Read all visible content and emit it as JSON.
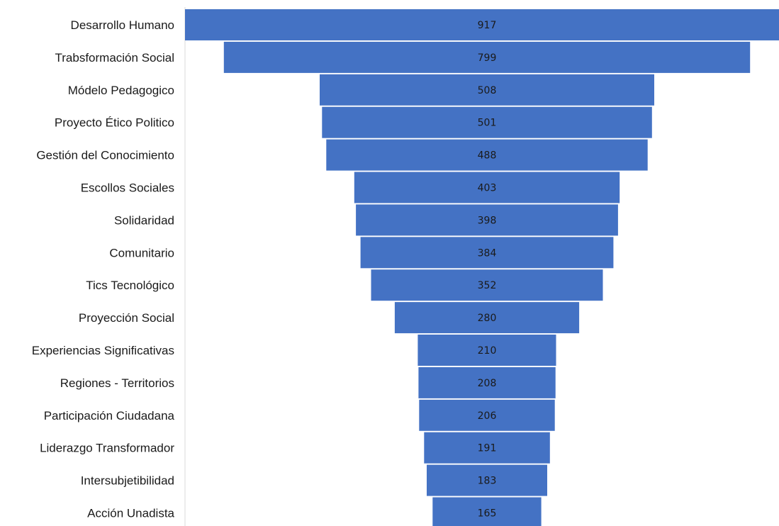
{
  "chart_data": {
    "type": "funnel",
    "title": "",
    "xlabel": "",
    "ylabel": "",
    "colors": {
      "bar": "#4472C4",
      "axis": "#d9d9d9",
      "text": "#1a1a1a"
    },
    "categories": [
      "Desarrollo Humano",
      "Trabsformación Social",
      "Módelo Pedagogico",
      "Proyecto Ético Politico",
      "Gestión del Conocimiento",
      "Escollos Sociales",
      "Solidaridad",
      "Comunitario",
      "Tics Tecnológico",
      "Proyección Social",
      "Experiencias Significativas",
      "Regiones - Territorios",
      "Participación Ciudadana",
      "Liderazgo Transformador",
      "Intersubjetibilidad",
      "Acción Unadista"
    ],
    "values": [
      917,
      799,
      508,
      501,
      488,
      403,
      398,
      384,
      352,
      280,
      210,
      208,
      206,
      191,
      183,
      165
    ],
    "grid": false,
    "legend": "none"
  }
}
